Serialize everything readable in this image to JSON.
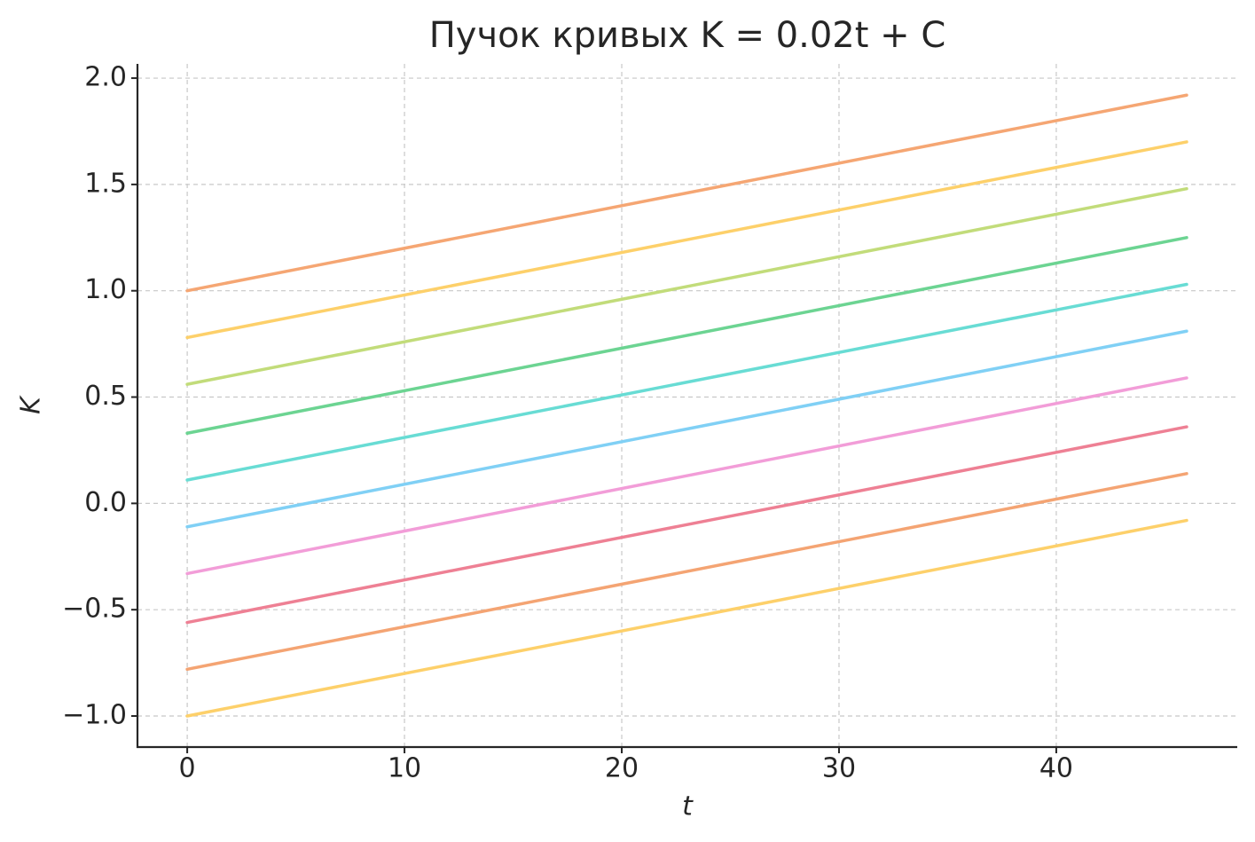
{
  "chart_data": {
    "type": "line",
    "title": "Пучок кривых K = 0.02t + C",
    "x_label": "t",
    "y_label": "K",
    "x": [
      0,
      46
    ],
    "series": [
      {
        "color": "#fdd06a",
        "values": [
          -1,
          -0.08
        ]
      },
      {
        "color": "#f4a473",
        "values": [
          -0.78,
          0.14
        ]
      },
      {
        "color": "#ee8094",
        "values": [
          -0.56,
          0.36
        ]
      },
      {
        "color": "#f29dd8",
        "values": [
          -0.33,
          0.59
        ]
      },
      {
        "color": "#80d0f5",
        "values": [
          -0.11,
          0.81
        ]
      },
      {
        "color": "#68dcd4",
        "values": [
          0.11,
          1.03
        ]
      },
      {
        "color": "#6cd492",
        "values": [
          0.33,
          1.25
        ]
      },
      {
        "color": "#c2dc7a",
        "values": [
          0.56,
          1.48
        ]
      },
      {
        "color": "#fdd06a",
        "values": [
          0.78,
          1.7
        ]
      },
      {
        "color": "#f5a673",
        "values": [
          1,
          1.92
        ]
      }
    ],
    "xlim": [
      -2.29,
      48.33
    ],
    "ylim": [
      -1.146,
      2.067
    ],
    "xticks": [
      0,
      10,
      20,
      30,
      40
    ],
    "yticks": [
      {
        "value": -1,
        "label": "−1.0"
      },
      {
        "value": -0.5,
        "label": "−0.5"
      },
      {
        "value": 0,
        "label": "0.0"
      },
      0.5,
      {
        "value": 1,
        "label": "1.0"
      },
      1.5,
      {
        "value": 2,
        "label": "2.0"
      }
    ],
    "grid": true
  }
}
